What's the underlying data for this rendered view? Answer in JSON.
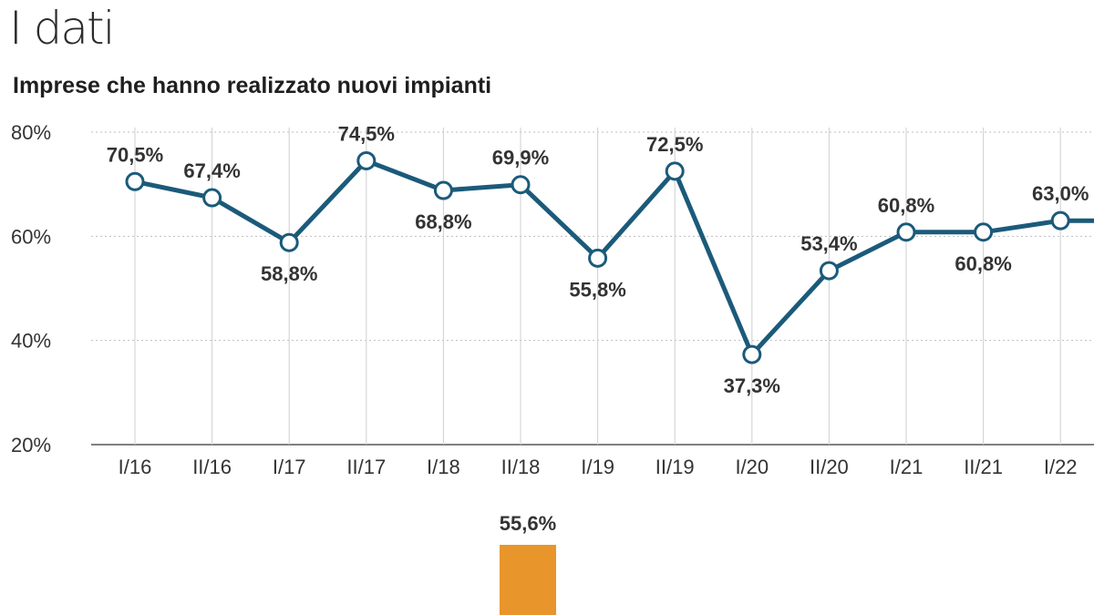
{
  "header": {
    "title": "I dati",
    "subtitle": "Imprese che hanno realizzato nuovi impianti"
  },
  "colors": {
    "line": "#1b5a7a",
    "marker_fill": "#ffffff",
    "grid": "#bdbdbd",
    "bar": "#e8952b"
  },
  "chart_data": [
    {
      "type": "line",
      "title": "Imprese che hanno realizzato nuovi impianti",
      "xlabel": "",
      "ylabel": "",
      "ylim": [
        20,
        80
      ],
      "y_ticks": [
        "80%",
        "60%",
        "40%",
        "20%"
      ],
      "y_tick_values": [
        80,
        60,
        40,
        20
      ],
      "grid": "horizontal dotted + vertical",
      "categories": [
        "I/16",
        "II/16",
        "I/17",
        "II/17",
        "I/18",
        "II/18",
        "I/19",
        "II/19",
        "I/20",
        "II/20",
        "I/21",
        "II/21",
        "I/22"
      ],
      "series": [
        {
          "values": [
            70.5,
            67.4,
            58.8,
            74.5,
            68.8,
            69.9,
            55.8,
            72.5,
            37.3,
            53.4,
            60.8,
            60.8,
            63.0
          ],
          "labels": [
            "70,5%",
            "67,4%",
            "58,8%",
            "74,5%",
            "68,8%",
            "69,9%",
            "55,8%",
            "72,5%",
            "37,3%",
            "53,4%",
            "60,8%",
            "60,8%",
            "63,0%"
          ],
          "label_positions": [
            "above",
            "above",
            "below",
            "above",
            "below",
            "above",
            "below",
            "above",
            "below",
            "above",
            "above",
            "below",
            "above"
          ]
        }
      ]
    },
    {
      "type": "bar",
      "values": [
        55.6
      ],
      "labels": [
        "55,6%"
      ]
    }
  ]
}
